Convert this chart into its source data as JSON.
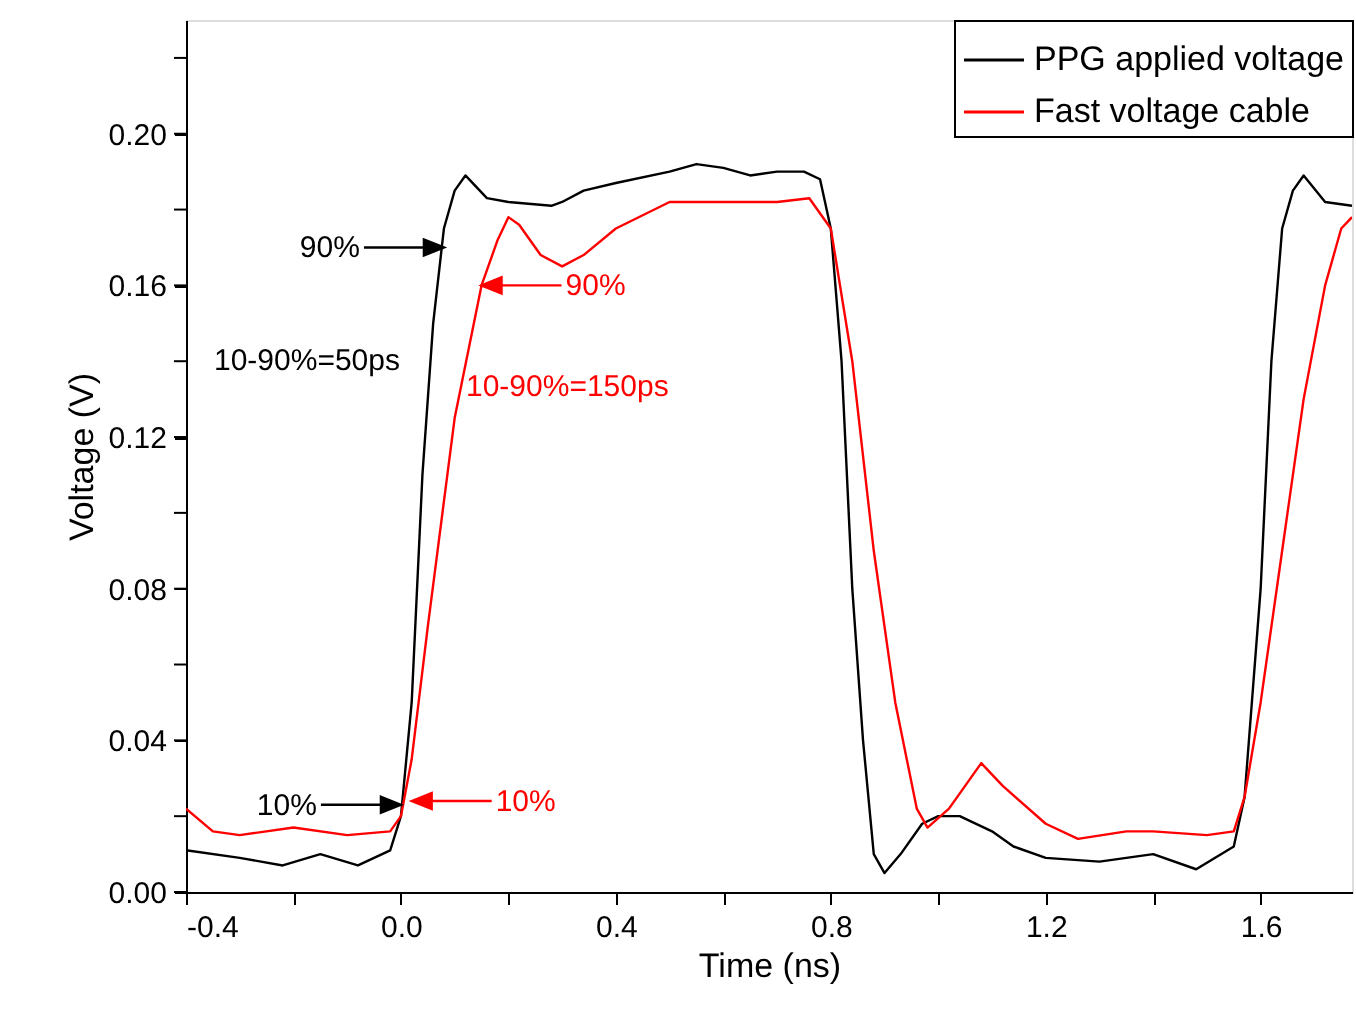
{
  "chart_data": {
    "type": "line",
    "xlabel": "Time (ns)",
    "ylabel": "Voltage (V)",
    "xlim": [
      -0.4,
      1.77
    ],
    "ylim": [
      0,
      0.23
    ],
    "xticks": [
      -0.4,
      {
        "value": -0.2,
        "label": null
      },
      {
        "value": 0,
        "label": "0.0"
      },
      {
        "value": 0.2,
        "label": null
      },
      0.4,
      {
        "value": 0.6,
        "label": null
      },
      0.8,
      {
        "value": 1.0,
        "label": null
      },
      1.2,
      {
        "value": 1.4,
        "label": null
      },
      1.6
    ],
    "yticks": [
      {
        "value": 0,
        "label": "0.00"
      },
      {
        "value": 0.02,
        "label": null
      },
      0.04,
      {
        "value": 0.06,
        "label": null
      },
      0.08,
      {
        "value": 0.1,
        "label": null
      },
      0.12,
      {
        "value": 0.14,
        "label": null
      },
      0.16,
      {
        "value": 0.18,
        "label": null
      },
      {
        "value": 0.2,
        "label": "0.20"
      },
      {
        "value": 0.22,
        "label": null
      }
    ],
    "grid": false,
    "legend": "top right",
    "marker": "none",
    "line_style": "solid",
    "series": [
      {
        "name": "PPG applied voltage",
        "color": "#000000",
        "x": [
          -0.4,
          -0.3,
          -0.22,
          -0.15,
          -0.08,
          -0.02,
          0.0,
          0.02,
          0.04,
          0.06,
          0.08,
          0.1,
          0.12,
          0.16,
          0.2,
          0.28,
          0.3,
          0.34,
          0.4,
          0.5,
          0.55,
          0.6,
          0.65,
          0.7,
          0.75,
          0.78,
          0.8,
          0.82,
          0.84,
          0.86,
          0.88,
          0.9,
          0.93,
          0.97,
          1.0,
          1.04,
          1.1,
          1.14,
          1.2,
          1.3,
          1.4,
          1.48,
          1.55,
          1.57,
          1.6,
          1.62,
          1.64,
          1.66,
          1.68,
          1.72,
          1.77
        ],
        "values": [
          0.011,
          0.009,
          0.007,
          0.01,
          0.007,
          0.011,
          0.02,
          0.05,
          0.11,
          0.15,
          0.175,
          0.185,
          0.189,
          0.183,
          0.182,
          0.181,
          0.182,
          0.185,
          0.187,
          0.19,
          0.192,
          0.191,
          0.189,
          0.19,
          0.19,
          0.188,
          0.175,
          0.14,
          0.08,
          0.04,
          0.01,
          0.005,
          0.01,
          0.018,
          0.02,
          0.02,
          0.016,
          0.012,
          0.009,
          0.008,
          0.01,
          0.006,
          0.012,
          0.025,
          0.08,
          0.14,
          0.175,
          0.185,
          0.189,
          0.182,
          0.181
        ]
      },
      {
        "name": "Fast voltage cable",
        "color": "#ff0000",
        "x": [
          -0.4,
          -0.35,
          -0.3,
          -0.2,
          -0.1,
          -0.02,
          0.0,
          0.02,
          0.05,
          0.1,
          0.15,
          0.18,
          0.2,
          0.22,
          0.26,
          0.3,
          0.34,
          0.4,
          0.5,
          0.6,
          0.7,
          0.76,
          0.8,
          0.84,
          0.88,
          0.92,
          0.96,
          0.98,
          1.02,
          1.08,
          1.12,
          1.2,
          1.26,
          1.35,
          1.4,
          1.5,
          1.55,
          1.57,
          1.6,
          1.64,
          1.68,
          1.72,
          1.75,
          1.77
        ],
        "values": [
          0.022,
          0.016,
          0.015,
          0.017,
          0.015,
          0.016,
          0.02,
          0.035,
          0.07,
          0.125,
          0.16,
          0.172,
          0.178,
          0.176,
          0.168,
          0.165,
          0.168,
          0.175,
          0.182,
          0.182,
          0.182,
          0.183,
          0.175,
          0.14,
          0.09,
          0.05,
          0.022,
          0.017,
          0.022,
          0.034,
          0.028,
          0.018,
          0.014,
          0.016,
          0.016,
          0.015,
          0.016,
          0.025,
          0.05,
          0.09,
          0.13,
          0.16,
          0.175,
          0.178
        ]
      }
    ],
    "annotations": [
      {
        "text": "90%",
        "x": 0.08,
        "y": 0.17
      },
      {
        "text": "10%",
        "x": 0.0,
        "y": 0.023
      },
      "10-90%=50ps",
      {
        "text": "90%",
        "x": 0.15,
        "y": 0.16
      },
      {
        "text": "10%",
        "x": 0.02,
        "y": 0.024
      },
      "10-90%=150ps"
    ]
  }
}
